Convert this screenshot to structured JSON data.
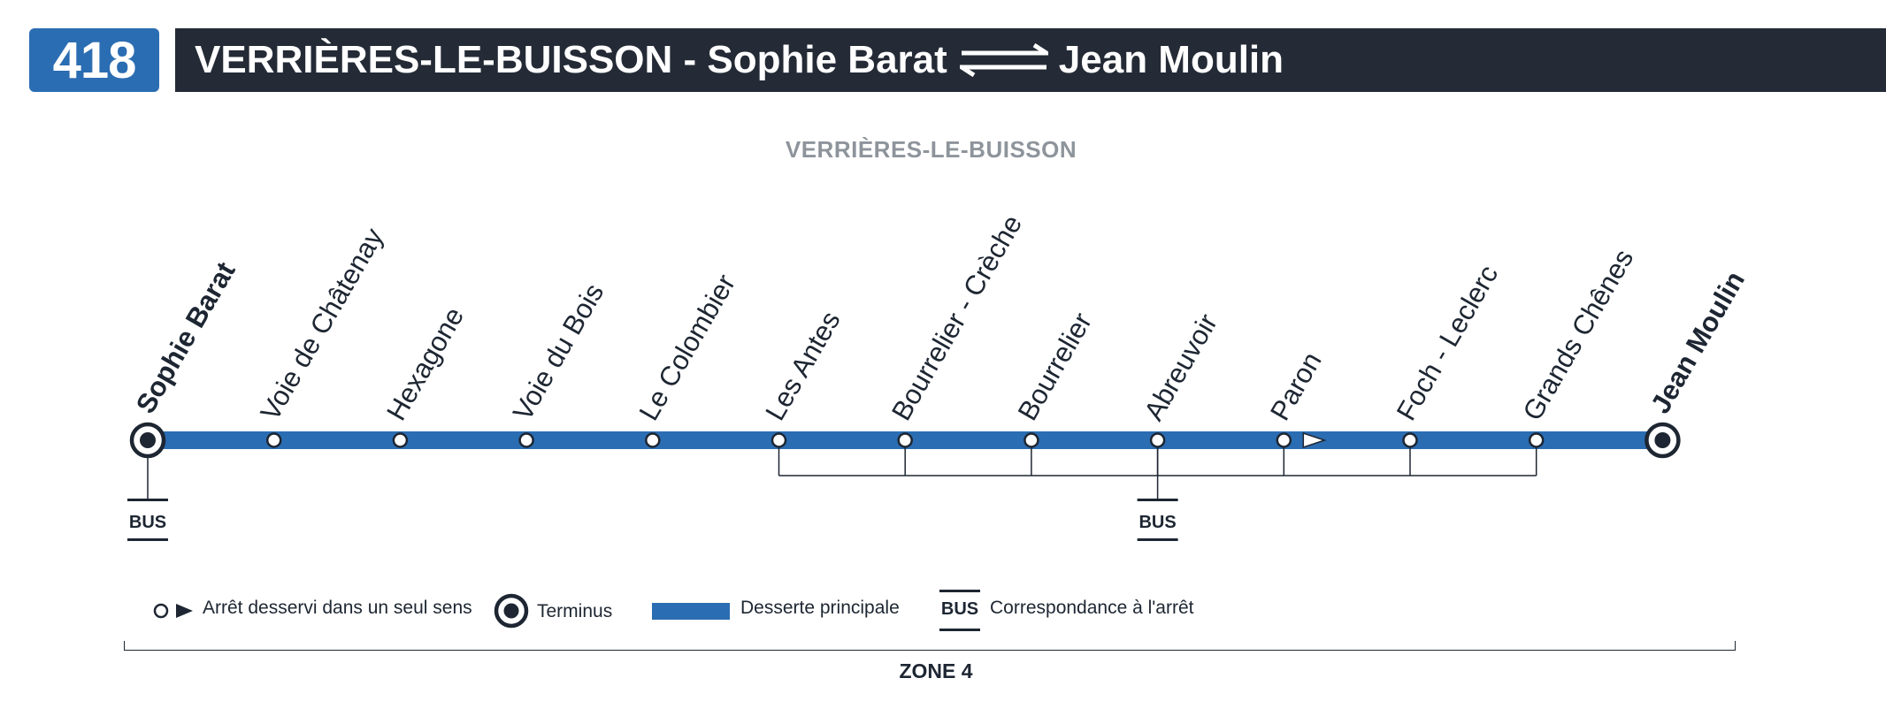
{
  "header": {
    "line_number": "418",
    "route_from": "VERRIÈRES-LE-BUISSON - Sophie Barat",
    "route_to": "Jean Moulin"
  },
  "commune_label": "VERRIÈRES-LE-BUISSON",
  "colors": {
    "line_blue": "#2b6db2",
    "header_dark": "#242b36",
    "text_dark": "#1d2632",
    "commune_grey": "#8e949b"
  },
  "stops": [
    {
      "name": "Sophie Barat",
      "terminus": true,
      "bus_connection": true
    },
    {
      "name": "Voie de Châtenay"
    },
    {
      "name": "Hexagone"
    },
    {
      "name": "Voie du Bois"
    },
    {
      "name": "Le Colombier"
    },
    {
      "name": "Les Antes"
    },
    {
      "name": "Bourrelier - Crèche"
    },
    {
      "name": "Bourrelier"
    },
    {
      "name": "Abreuvoir",
      "bus_connection": true
    },
    {
      "name": "Paron",
      "one_way_arrow_after": true
    },
    {
      "name": "Foch - Leclerc"
    },
    {
      "name": "Grands Chênes"
    },
    {
      "name": "Jean Moulin",
      "terminus": true
    }
  ],
  "bus_label": "BUS",
  "legend": {
    "one_way": "Arrêt desservi dans un seul sens",
    "terminus": "Terminus",
    "main_service": "Desserte principale",
    "connection": "Correspondance à l'arrêt",
    "bus_label": "BUS"
  },
  "zone": "ZONE 4"
}
